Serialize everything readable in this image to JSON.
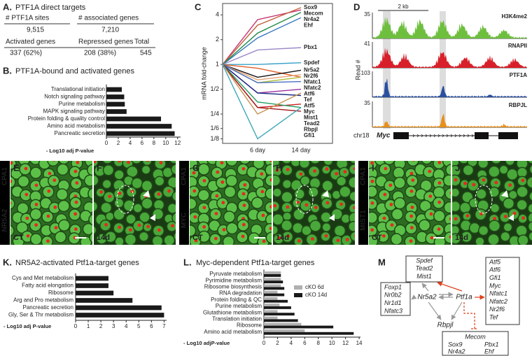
{
  "panel_a": {
    "label": "A.",
    "title": "PTF1A direct targets",
    "rows": [
      [
        "# PTF1A sites",
        "# associated genes"
      ],
      [
        "9,515",
        "7,210"
      ],
      [
        "Activated genes",
        "Repressed genes",
        "Total"
      ],
      [
        "337 (62%)",
        "208 (38%)",
        "545"
      ]
    ]
  },
  "chart_data": [
    {
      "type": "bar",
      "orientation": "horizontal",
      "panel_label": "B.",
      "title": "PTF1A-bound and activated genes",
      "x_label": "- Log10 adj P-value",
      "categories": [
        "Translational initiation",
        "Notch signaling pathway",
        "Purine metabolism",
        "MAPK signaling pathway",
        "Protein folding & quality control",
        "Amino acid metabolism",
        "Pancreatic secretion"
      ],
      "values": [
        2.6,
        3.0,
        3.1,
        3.4,
        9.2,
        11.0,
        11.5
      ],
      "color": "#1a1a1a",
      "xlim": [
        0,
        12.5
      ],
      "xticks": [
        0,
        2,
        4,
        6,
        8,
        10,
        12
      ]
    },
    {
      "type": "line",
      "panel_label": "C",
      "y_label": "mRNA fold-change",
      "log_scale": true,
      "categories": [
        null,
        "6 day",
        "14 day"
      ],
      "ylim": [
        0.11,
        5.5
      ],
      "yticks": [
        4,
        2,
        1,
        {
          "value": 0.5,
          "label": "1/2"
        },
        {
          "value": 0.25,
          "label": "1/4"
        },
        {
          "value": 0.1667,
          "label": "1/6"
        },
        {
          "value": 0.125,
          "label": "1/8"
        }
      ],
      "series": [
        {
          "name": "Mecom",
          "color": "#c8306e",
          "values": [
            1,
            3.5,
            4.6
          ]
        },
        {
          "name": "Sox9",
          "color": "#c0623a",
          "values": [
            1,
            3.0,
            4.9
          ]
        },
        {
          "name": "Ehf",
          "color": "#3a78c0",
          "values": [
            1,
            2.1,
            3.7
          ]
        },
        {
          "name": "Nr4a2",
          "color": "#1e8a46",
          "values": [
            1,
            2.4,
            4.3
          ]
        },
        {
          "name": "Pbx1",
          "color": "#9a88c8",
          "values": [
            1,
            1.5,
            1.6
          ]
        },
        {
          "name": "Spdef",
          "color": "#3aa0c8",
          "values": [
            1,
            1.0,
            1.05
          ]
        },
        {
          "name": "Nfatc1",
          "color": "#e0602a",
          "values": [
            1,
            0.9,
            0.7
          ]
        },
        {
          "name": "Nr5a2",
          "color": "#111111",
          "values": [
            1,
            0.7,
            0.85
          ]
        },
        {
          "name": "Nr2f6",
          "color": "#e8a070",
          "values": [
            1,
            0.65,
            0.75
          ]
        },
        {
          "name": "Nfatc2",
          "color": "#b0c040",
          "values": [
            1,
            0.6,
            0.7
          ]
        },
        {
          "name": "Atf6",
          "color": "#4a70c0",
          "values": [
            1,
            0.6,
            0.62
          ]
        },
        {
          "name": "Tef",
          "color": "#9a30a0",
          "values": [
            1,
            0.45,
            0.5
          ]
        },
        {
          "name": "Myc",
          "color": "#1a2a80",
          "values": [
            1,
            0.45,
            0.42
          ]
        },
        {
          "name": "Mist1",
          "color": "#d02020",
          "values": [
            1,
            0.3,
            0.33
          ]
        },
        {
          "name": "Tead2",
          "color": "#20a060",
          "values": [
            1,
            0.35,
            0.3
          ]
        },
        {
          "name": "Gfi1",
          "color": "#a01818",
          "values": [
            1,
            0.3,
            0.27
          ]
        },
        {
          "name": "Atf5",
          "color": "#c89050",
          "values": [
            1,
            0.25,
            0.45
          ]
        },
        {
          "name": "Rbpjl",
          "color": "#40a8b8",
          "values": [
            1,
            0.125,
            0.3
          ]
        }
      ]
    },
    {
      "type": "bar",
      "orientation": "horizontal",
      "panel_label": "K.",
      "title": "NR5A2-activated Ptf1a-target genes",
      "x_label": "- Log10 adj P-value",
      "categories": [
        "Cys and Met metabolism",
        "Fatty acid elongation",
        "Ribosome",
        "Arg and Pro metabolism",
        "Pancreatic secretion",
        "Gly, Ser & Thr metabolism"
      ],
      "values": [
        2.6,
        2.6,
        3.0,
        4.5,
        6.8,
        7.0
      ],
      "color": "#1a1a1a",
      "xlim": [
        0,
        7.2
      ],
      "xticks": [
        0,
        1,
        2,
        3,
        4,
        5,
        6,
        7
      ]
    },
    {
      "type": "bar",
      "orientation": "horizontal",
      "panel_label": "L.",
      "title": "Myc-dependent Ptf1a-target genes",
      "x_label": "- Log10 adjP-value",
      "categories": [
        "Pyruvate metabolism",
        "Pyrimidine metabolism",
        "Ribosome biosynthesis",
        "RNA degradation",
        "Protein folding & QC",
        "Purine metabolism",
        "Glutathione metabolism",
        "Translation initiation",
        "Ribosome",
        "Amino acid metabolism"
      ],
      "series": [
        {
          "name": "cKO 6d",
          "color": "#b0b0b0",
          "values": [
            2.5,
            2.5,
            2.5,
            2.0,
            2.0,
            2.3,
            2.0,
            2.0,
            5.5,
            6.0
          ]
        },
        {
          "name": "cKO 14d",
          "color": "#1a1a1a",
          "values": [
            2.5,
            2.8,
            3.0,
            3.0,
            3.5,
            4.0,
            4.5,
            5.0,
            10.2,
            13.2
          ]
        }
      ],
      "xlim": [
        0,
        14.2
      ],
      "xticks": [
        0,
        2,
        4,
        6,
        8,
        10,
        12,
        14
      ]
    }
  ],
  "panel_d": {
    "label": "D",
    "y_label": "Read #",
    "scale_bar": "2 kb",
    "chromosome": "chr18",
    "gene": "Myc",
    "tracks": [
      {
        "name": "H3K4me2",
        "max": 35,
        "color": "#6fbf3f"
      },
      {
        "name": "RNAPII",
        "max": 41,
        "color": "#d8202a"
      },
      {
        "name": "PTF1A",
        "max": 103,
        "color": "#2a4fa0"
      },
      {
        "name": "RBPJL",
        "max": 35,
        "color": "#e8901a"
      }
    ]
  },
  "images": [
    {
      "stains": [
        "CPA1",
        "NR5A2"
      ],
      "panels": [
        {
          "label": "E",
          "condition": "CT"
        },
        {
          "label": "F",
          "condition": "14d"
        }
      ]
    },
    {
      "stains": [
        "CPA1",
        "MYC"
      ],
      "panels": [
        {
          "label": "G",
          "condition": "CT"
        },
        {
          "label": "H",
          "condition": "14d"
        }
      ]
    },
    {
      "stains": [
        "CPA1",
        "MIST1"
      ],
      "panels": [
        {
          "label": "I",
          "condition": "CT"
        },
        {
          "label": "J",
          "condition": "14d"
        }
      ]
    }
  ],
  "panel_m": {
    "label": "M",
    "nodes": [
      "Nr5a2",
      "Ptf1a",
      "Rbpjl"
    ],
    "boxes": [
      [
        "Spdef",
        "Tead2",
        "Mist1"
      ],
      [
        "Foxp1",
        "Nr0b2",
        "Nr1d1",
        "Nfatc3"
      ],
      [
        "Atf5",
        "Atf6",
        "Gfi1",
        "Myc",
        "Nfatc1",
        "Nfatc2",
        "Nr2f6",
        "Tef"
      ],
      [
        "Mecom",
        "Sox9",
        "Pbx1",
        "Nr4a2",
        "Ehf"
      ]
    ]
  }
}
